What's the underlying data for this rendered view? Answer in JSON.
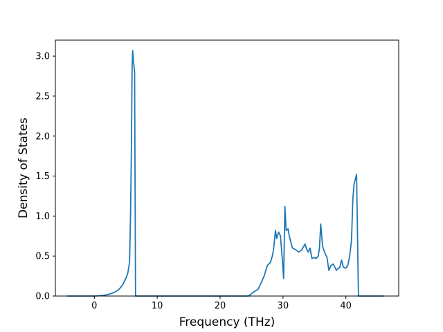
{
  "chart_data": {
    "type": "line",
    "xlabel": "Frequency (THz)",
    "ylabel": "Density of States",
    "xlim": [
      -6.2,
      48.4
    ],
    "ylim": [
      0.0,
      3.2
    ],
    "xticks": [
      0,
      10,
      20,
      30,
      40
    ],
    "yticks": [
      0.0,
      0.5,
      1.0,
      1.5,
      2.0,
      2.5,
      3.0
    ],
    "grid": false,
    "series": [
      {
        "color": "#1f77b4",
        "x": [
          -4.3,
          -2.0,
          0.0,
          1.0,
          2.0,
          3.0,
          3.5,
          4.0,
          4.5,
          5.0,
          5.3,
          5.6,
          5.75,
          5.9,
          6.0,
          6.1,
          6.2,
          6.4,
          6.55,
          6.6,
          10,
          15,
          20,
          24.5,
          25.0,
          25.5,
          26.0,
          26.5,
          27.0,
          27.5,
          28.0,
          28.3,
          28.5,
          28.8,
          29.0,
          29.3,
          29.6,
          29.9,
          30.1,
          30.3,
          30.5,
          30.8,
          31.0,
          31.5,
          32.0,
          32.5,
          33.0,
          33.5,
          33.8,
          34.0,
          34.3,
          34.6,
          35.0,
          35.3,
          35.6,
          35.8,
          36.0,
          36.3,
          36.6,
          37.0,
          37.3,
          37.6,
          38.0,
          38.5,
          38.8,
          39.0,
          39.3,
          39.6,
          40.0,
          40.3,
          40.6,
          40.9,
          41.1,
          41.3,
          41.5,
          41.7,
          42.0,
          44.0,
          46.0
        ],
        "y": [
          0.0,
          0.0,
          0.0,
          0.005,
          0.015,
          0.04,
          0.06,
          0.09,
          0.14,
          0.22,
          0.28,
          0.42,
          1.0,
          1.9,
          2.85,
          3.07,
          2.95,
          2.8,
          0.0,
          0.0,
          0.0,
          0.0,
          0.0,
          0.0,
          0.03,
          0.06,
          0.08,
          0.16,
          0.25,
          0.38,
          0.42,
          0.5,
          0.58,
          0.82,
          0.72,
          0.8,
          0.75,
          0.45,
          0.22,
          1.12,
          0.82,
          0.84,
          0.75,
          0.6,
          0.58,
          0.55,
          0.58,
          0.65,
          0.58,
          0.55,
          0.6,
          0.47,
          0.48,
          0.47,
          0.5,
          0.6,
          0.9,
          0.62,
          0.55,
          0.48,
          0.32,
          0.38,
          0.4,
          0.32,
          0.35,
          0.35,
          0.45,
          0.36,
          0.35,
          0.38,
          0.5,
          0.7,
          1.2,
          1.4,
          1.46,
          1.52,
          0.0,
          0.0,
          0.0
        ]
      }
    ]
  }
}
